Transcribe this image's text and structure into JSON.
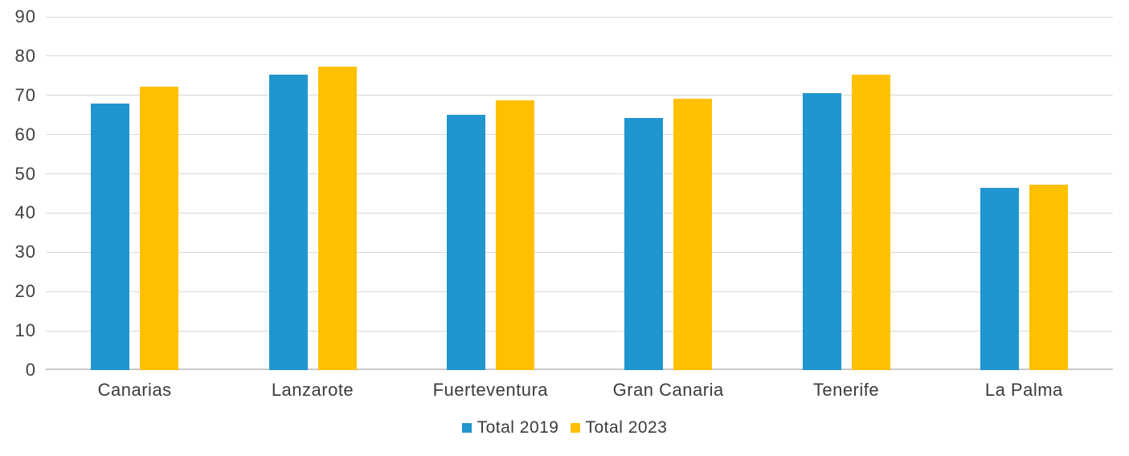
{
  "chart_data": {
    "type": "bar",
    "title": "",
    "xlabel": "",
    "ylabel": "",
    "categories": [
      "Canarias",
      "Lanzarote",
      "Fuerteventura",
      "Gran Canaria",
      "Tenerife",
      "La Palma"
    ],
    "series": [
      {
        "name": "Total 2019",
        "color": "#2095ce",
        "values": [
          68.0,
          75.2,
          65.0,
          64.2,
          70.6,
          46.5
        ]
      },
      {
        "name": "Total 2023",
        "color": "#ffc000",
        "values": [
          72.2,
          77.4,
          68.7,
          69.1,
          75.3,
          47.3
        ]
      }
    ],
    "ylim": [
      0,
      90
    ],
    "yticks": [
      0,
      10,
      20,
      30,
      40,
      50,
      60,
      70,
      80,
      90
    ],
    "grid": true,
    "legend_position": "bottom",
    "colors": {
      "gridline": "#d9d9d9",
      "axis_line": "#c9c9c9",
      "tick_text": "#404040",
      "series_2019": "#2095ce",
      "series_2023": "#ffc000"
    }
  }
}
